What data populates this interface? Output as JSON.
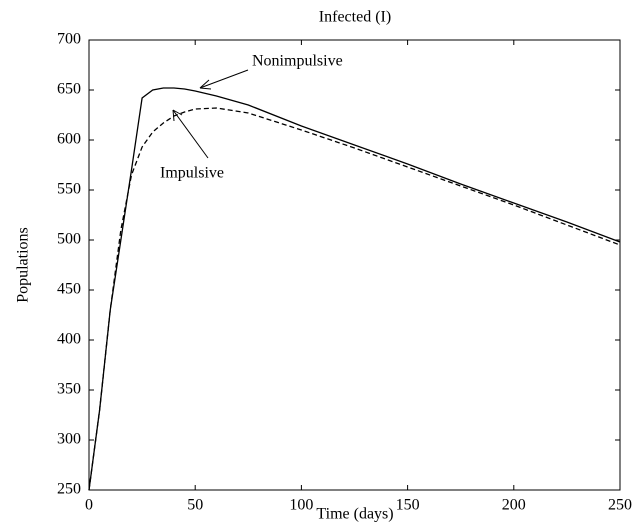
{
  "chart_data": {
    "type": "line",
    "title": "Infected (I)",
    "x_label": "Time (days)",
    "y_label": "Populations",
    "x": [
      0,
      5,
      10,
      15,
      20,
      25,
      30,
      35,
      40,
      45,
      50,
      60,
      75,
      100,
      125,
      150,
      175,
      200,
      225,
      250
    ],
    "series": [
      {
        "name": "Nonimpulsive",
        "color": "#000000",
        "line_style": "solid",
        "values": [
          250,
          330,
          430,
          500,
          570,
          642,
          650,
          652,
          652,
          651,
          649,
          644,
          635,
          614,
          595,
          576,
          556,
          537,
          518,
          498
        ]
      },
      {
        "name": "Impulsive",
        "color": "#000000",
        "line_style": "dashed",
        "values": [
          250,
          330,
          430,
          510,
          565,
          593,
          608,
          617,
          624,
          628,
          631,
          632,
          627,
          610,
          592,
          573,
          554,
          535,
          515,
          495
        ]
      }
    ],
    "xlim": [
      0,
      250
    ],
    "xticks": [
      0,
      50,
      100,
      150,
      200,
      250
    ],
    "ylim": [
      250,
      700
    ],
    "yticks": [
      250,
      300,
      350,
      400,
      450,
      500,
      550,
      600,
      650,
      700
    ],
    "grid": false
  }
}
